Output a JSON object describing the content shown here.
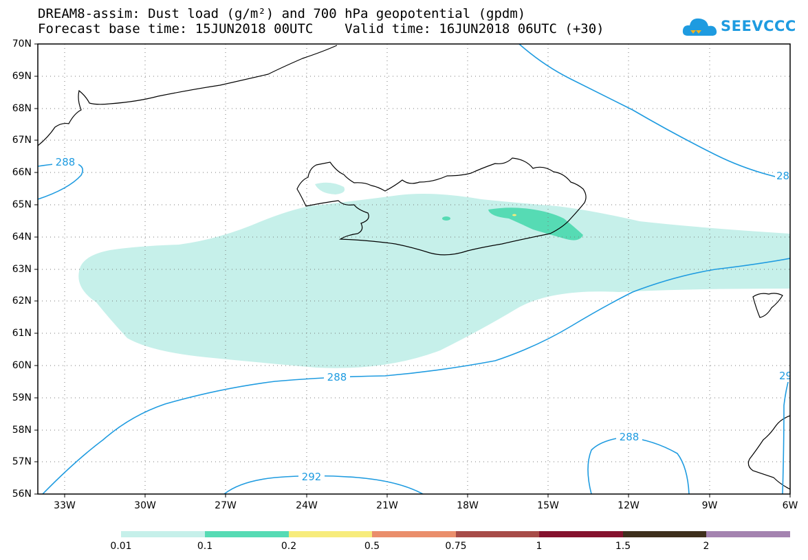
{
  "header": {
    "title_line1": "DREAM8-assim: Dust load (g/m²) and 700 hPa geopotential (gpdm)",
    "title_line2": "Forecast base time: 15JUN2018 00UTC    Valid time: 16JUN2018 06UTC (+30)"
  },
  "logo": {
    "text": "SEEVCCC",
    "icon": "cloud-icon"
  },
  "map": {
    "lat_labels": [
      "70N",
      "69N",
      "68N",
      "67N",
      "66N",
      "65N",
      "64N",
      "63N",
      "62N",
      "61N",
      "60N",
      "59N",
      "58N",
      "57N",
      "56N"
    ],
    "lon_labels": [
      "33W",
      "30W",
      "27W",
      "24W",
      "21W",
      "18W",
      "15W",
      "12W",
      "9W",
      "6W"
    ],
    "contour_labels": [
      "288",
      "28",
      "288",
      "29",
      "288",
      "292"
    ],
    "colors": {
      "contour": "#1e9be0",
      "dust_low": "#c6f0ea",
      "dust_mid": "#56dbb4",
      "dust_high": "#f7ec7c"
    }
  },
  "colorbar": {
    "labels": [
      "0.01",
      "0.1",
      "0.2",
      "0.5",
      "0.75",
      "1",
      "1.5",
      "2"
    ],
    "colors": [
      "#c6f0ea",
      "#56dbb4",
      "#f7ec7c",
      "#ea8e6b",
      "#a74c48",
      "#85122e",
      "#3e2f1c",
      "#a483b0"
    ]
  }
}
